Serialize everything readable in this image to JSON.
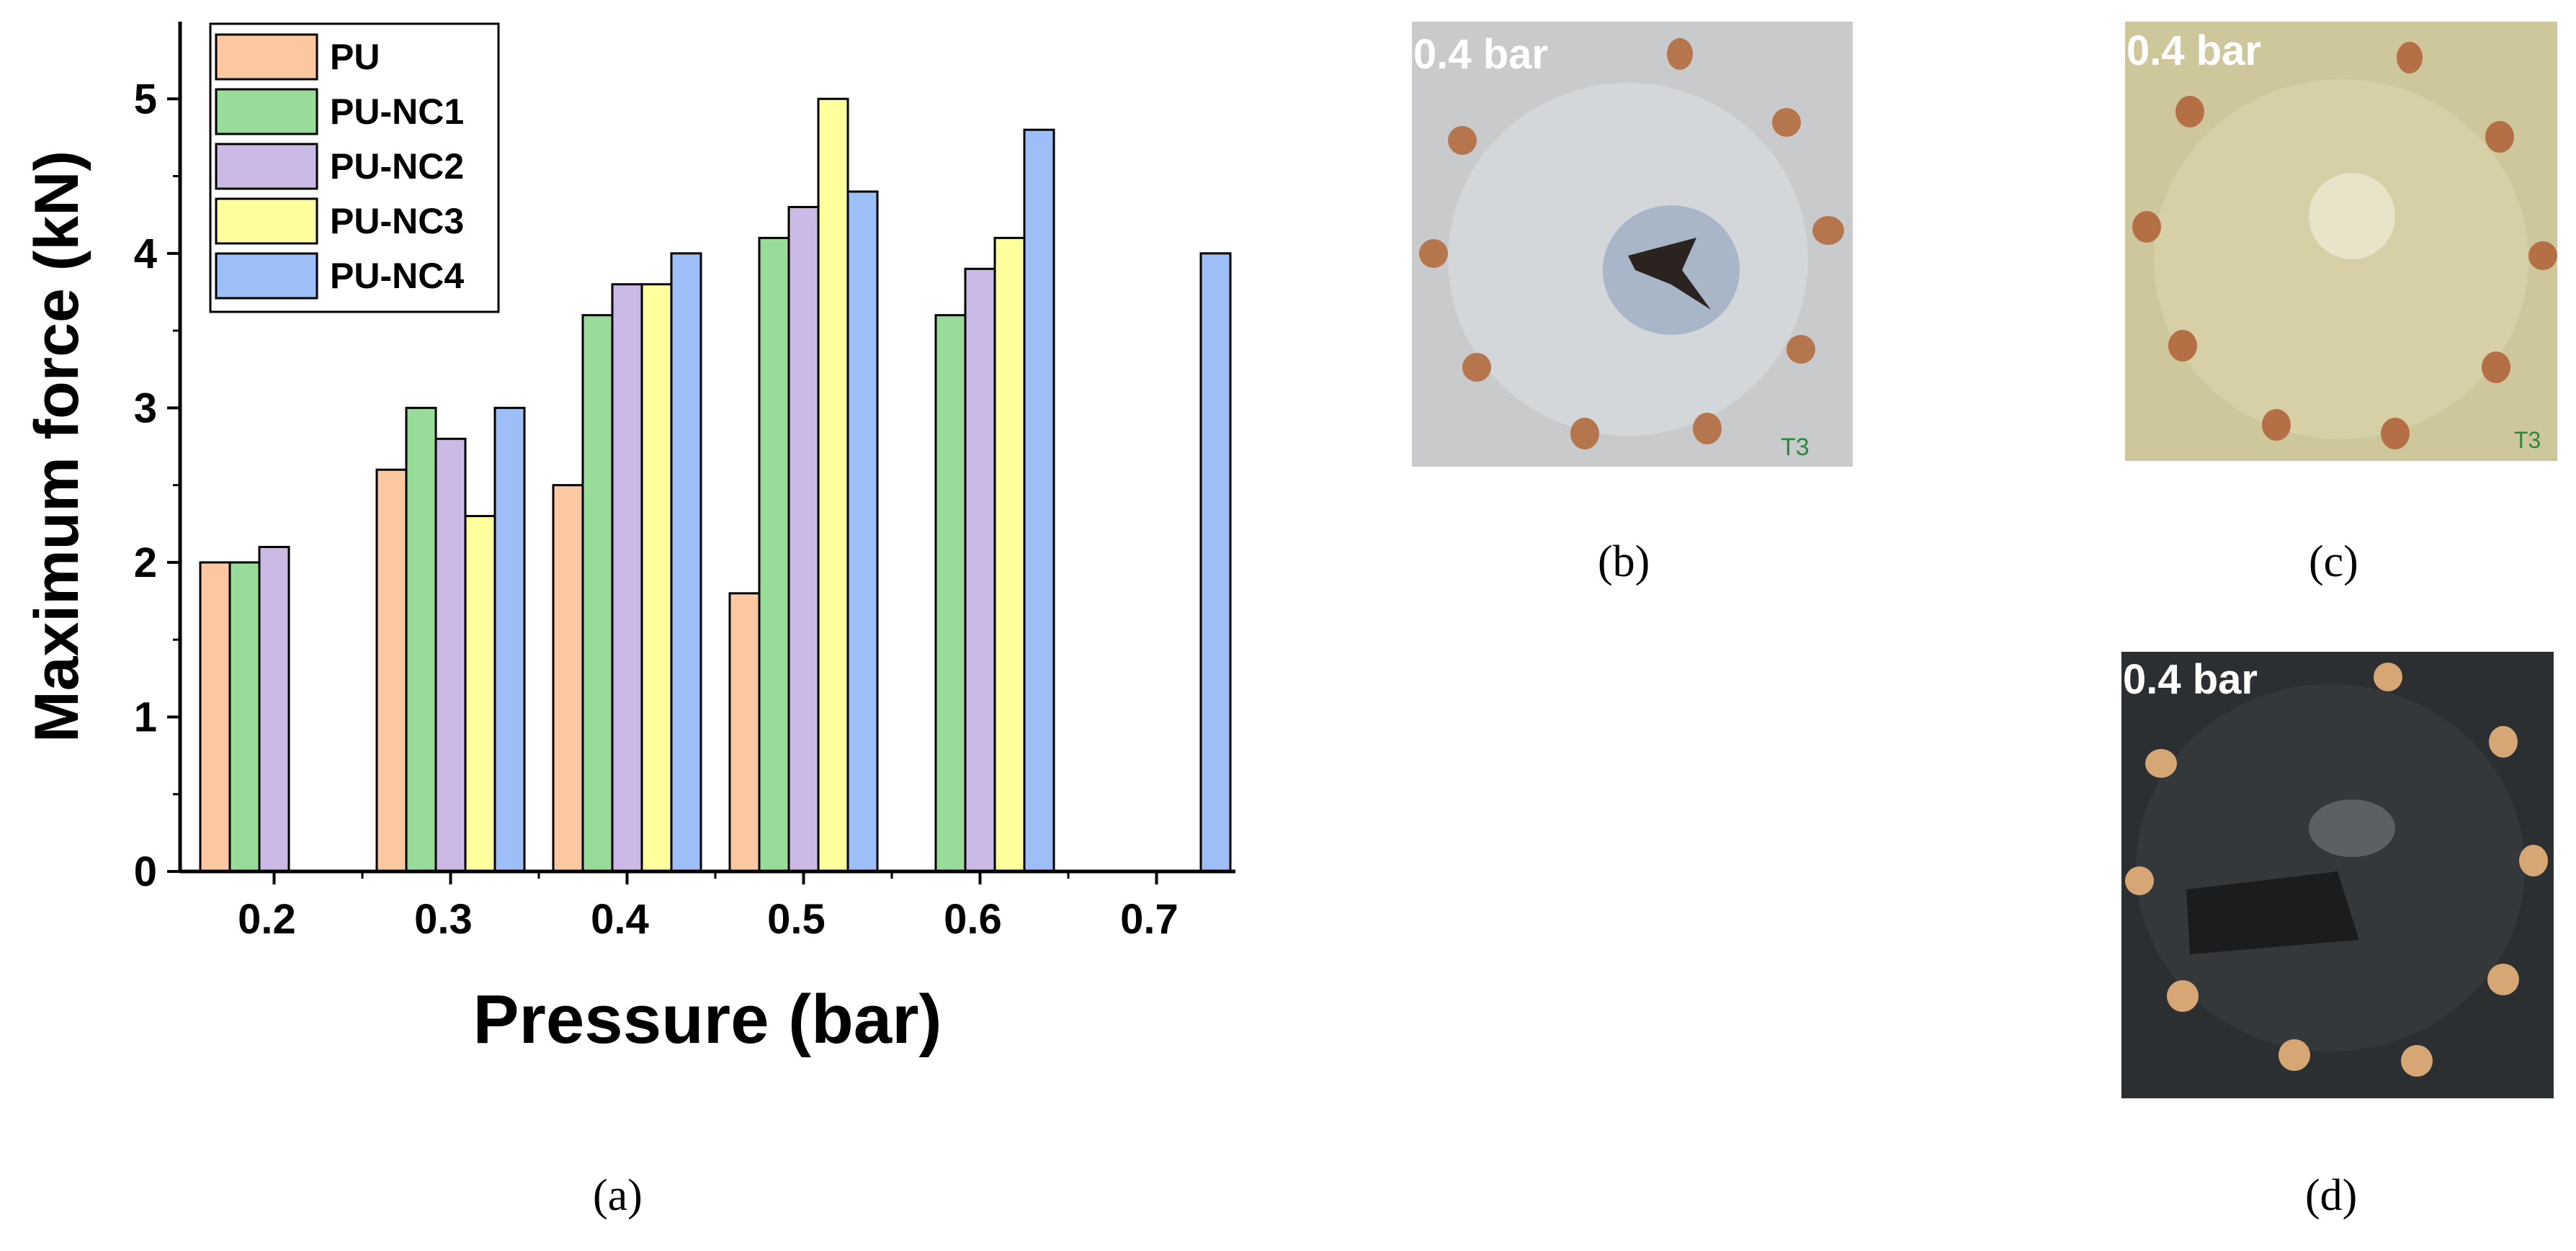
{
  "chart_data": {
    "type": "bar",
    "xlabel": "Pressure (bar)",
    "ylabel": "Maximum force (kN)",
    "categories": [
      "0.2",
      "0.3",
      "0.4",
      "0.5",
      "0.6",
      "0.7"
    ],
    "ylim": [
      0,
      5.5
    ],
    "yticks": [
      "0",
      "1",
      "2",
      "3",
      "4",
      "5"
    ],
    "legend_position": "top-left",
    "grid": false,
    "series": [
      {
        "name": "PU",
        "color": "#FCC8A2",
        "values": [
          2.0,
          2.6,
          2.5,
          1.8,
          null,
          null
        ]
      },
      {
        "name": "PU-NC1",
        "color": "#99DC99",
        "values": [
          2.0,
          3.0,
          3.6,
          4.1,
          3.6,
          null
        ]
      },
      {
        "name": "PU-NC2",
        "color": "#CBB9E6",
        "values": [
          2.1,
          2.8,
          3.8,
          4.3,
          3.9,
          null
        ]
      },
      {
        "name": "PU-NC3",
        "color": "#FFFF9E",
        "values": [
          null,
          2.3,
          3.8,
          5.0,
          4.1,
          null
        ]
      },
      {
        "name": "PU-NC4",
        "color": "#9EBEF7",
        "values": [
          null,
          3.0,
          4.0,
          4.4,
          4.8,
          4.0
        ]
      }
    ]
  },
  "captions": {
    "a": "(a)",
    "b": "(b)",
    "c": "(c)",
    "d": "(d)"
  },
  "photos": {
    "b": {
      "label": "0.4 bar",
      "annotation": "T3"
    },
    "c": {
      "label": "0.4 bar",
      "annotation": "T3"
    },
    "d": {
      "label": "0.4 bar"
    }
  }
}
